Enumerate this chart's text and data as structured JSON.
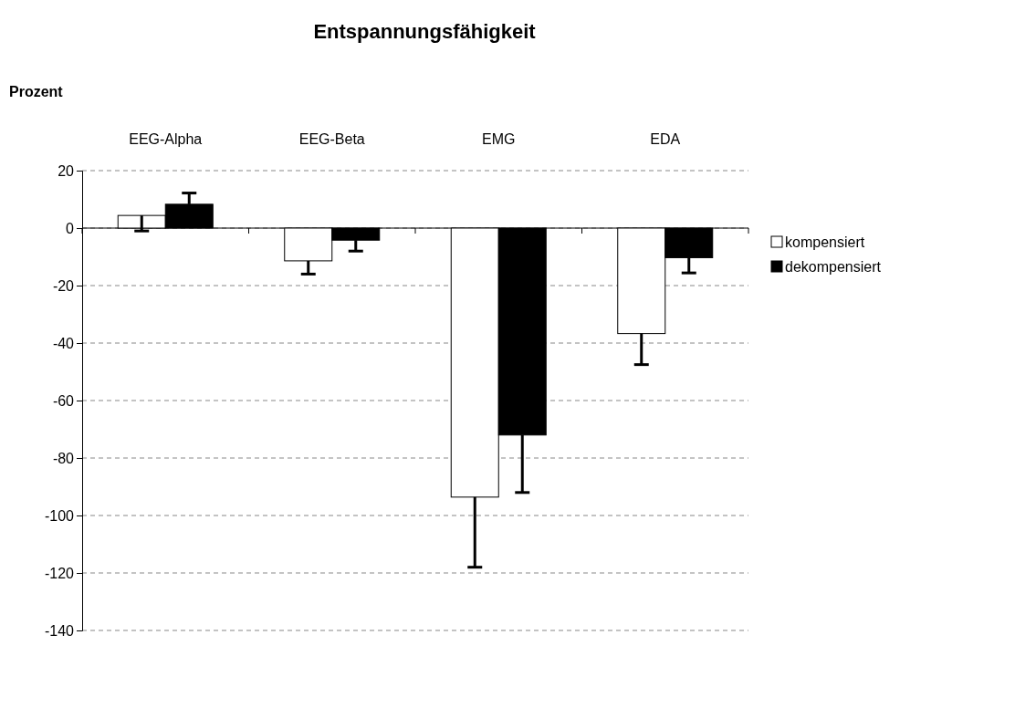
{
  "chart_data": {
    "type": "bar",
    "title": "Entspannungsfähigkeit",
    "ylabel": "Prozent",
    "categories": [
      "EEG-Alpha",
      "EEG-Beta",
      "EMG",
      "EDA"
    ],
    "series": [
      {
        "name": "kompensiert",
        "color": "#ffffff",
        "values": [
          4.4,
          -11.4,
          -93.6,
          -36.7
        ],
        "errors": [
          [
            -1,
            4.4
          ],
          [
            -16,
            -11.4
          ],
          [
            -118,
            -93.6
          ],
          [
            -47.5,
            -36.7
          ]
        ]
      },
      {
        "name": "dekompensiert",
        "color": "#000000",
        "values": [
          8.3,
          -4.2,
          -72,
          -10.3
        ],
        "errors": [
          [
            8.3,
            12.2
          ],
          [
            -8,
            -4.2
          ],
          [
            -92,
            -72
          ],
          [
            -15.6,
            -10.3
          ]
        ]
      }
    ],
    "ylim": [
      -140,
      20
    ],
    "yticks": [
      -140,
      -120,
      -100,
      -80,
      -60,
      -40,
      -20,
      0,
      20
    ],
    "grid": "y",
    "legend": "right"
  }
}
